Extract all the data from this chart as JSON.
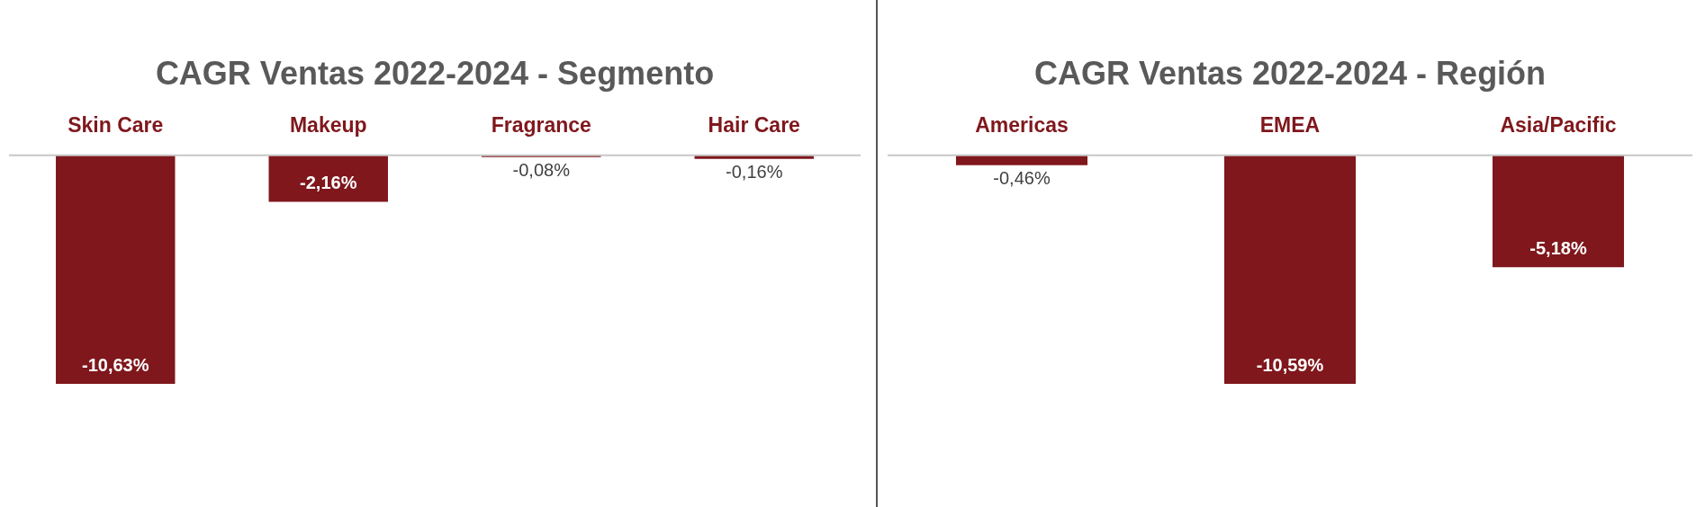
{
  "chart_data": [
    {
      "type": "bar",
      "title": "CAGR Ventas 2022-2024 - Segmento",
      "categories": [
        "Skin Care",
        "Makeup",
        "Fragrance",
        "Hair Care"
      ],
      "values": [
        -10.63,
        -2.16,
        -0.08,
        -0.16
      ],
      "color": "#7f171c",
      "value_labels": [
        "-10,63%",
        "-2,16%",
        "-0,08%",
        "-0,16%"
      ]
    },
    {
      "type": "bar",
      "title": "CAGR Ventas 2022-2024 - Región",
      "categories": [
        "Americas",
        "EMEA",
        "Asia/Pacific"
      ],
      "values": [
        -0.46,
        -10.59,
        -5.18
      ],
      "color": "#7f171c",
      "value_labels": [
        "-0,46%",
        "-10,59%",
        "-5,18%"
      ]
    }
  ]
}
